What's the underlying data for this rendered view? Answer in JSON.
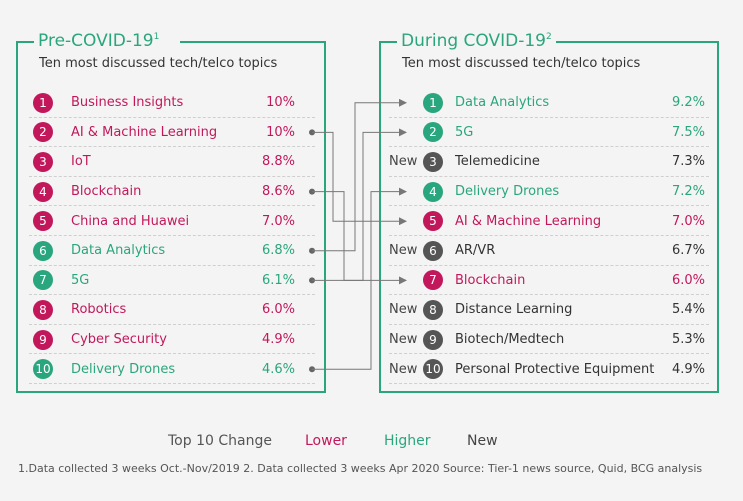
{
  "pre": {
    "title": "Pre-COVID-19",
    "title_sup": "1",
    "subtitle": "Ten most discussed tech/telco topics",
    "rows": [
      {
        "rank": "1",
        "label": "Business Insights",
        "value": "10%",
        "status": "lower"
      },
      {
        "rank": "2",
        "label": "AI & Machine Learning",
        "value": "10%",
        "status": "lower"
      },
      {
        "rank": "3",
        "label": "IoT",
        "value": "8.8%",
        "status": "lower"
      },
      {
        "rank": "4",
        "label": "Blockchain",
        "value": "8.6%",
        "status": "lower"
      },
      {
        "rank": "5",
        "label": "China and Huawei",
        "value": "7.0%",
        "status": "lower"
      },
      {
        "rank": "6",
        "label": "Data Analytics",
        "value": "6.8%",
        "status": "higher"
      },
      {
        "rank": "7",
        "label": "5G",
        "value": "6.1%",
        "status": "higher"
      },
      {
        "rank": "8",
        "label": "Robotics",
        "value": "6.0%",
        "status": "lower"
      },
      {
        "rank": "9",
        "label": "Cyber Security",
        "value": "4.9%",
        "status": "lower"
      },
      {
        "rank": "10",
        "label": "Delivery Drones",
        "value": "4.6%",
        "status": "higher"
      }
    ]
  },
  "during": {
    "title": "During COVID-19",
    "title_sup": "2",
    "subtitle": "Ten most discussed tech/telco topics",
    "rows": [
      {
        "rank": "1",
        "new": "",
        "label": "Data Analytics",
        "value": "9.2%",
        "status": "higher"
      },
      {
        "rank": "2",
        "new": "",
        "label": "5G",
        "value": "7.5%",
        "status": "higher"
      },
      {
        "rank": "3",
        "new": "New",
        "label": "Telemedicine",
        "value": "7.3%",
        "status": "new"
      },
      {
        "rank": "4",
        "new": "",
        "label": "Delivery Drones",
        "value": "7.2%",
        "status": "higher"
      },
      {
        "rank": "5",
        "new": "",
        "label": "AI & Machine Learning",
        "value": "7.0%",
        "status": "lower"
      },
      {
        "rank": "6",
        "new": "New",
        "label": "AR/VR",
        "value": "6.7%",
        "status": "new"
      },
      {
        "rank": "7",
        "new": "",
        "label": "Blockchain",
        "value": "6.0%",
        "status": "lower"
      },
      {
        "rank": "8",
        "new": "New",
        "label": "Distance Learning",
        "value": "5.4%",
        "status": "new"
      },
      {
        "rank": "9",
        "new": "New",
        "label": "Biotech/Medtech",
        "value": "5.3%",
        "status": "new"
      },
      {
        "rank": "10",
        "new": "New",
        "label": "Personal Protective Equipment",
        "value": "4.9%",
        "status": "new"
      }
    ]
  },
  "connections": [
    {
      "from": "6",
      "to": "1"
    },
    {
      "from": "7",
      "to": "2"
    },
    {
      "from": "10",
      "to": "4"
    },
    {
      "from": "2",
      "to": "5"
    },
    {
      "from": "4",
      "to": "7"
    }
  ],
  "legend": {
    "heading": "Top 10 Change",
    "lower": "Lower",
    "higher": "Higher",
    "new": "New"
  },
  "colors": {
    "lower": "#c2185b",
    "higher": "#2aa67e",
    "new": "#555555",
    "frame": "#2aa67e"
  },
  "footnote": "1.Data collected 3 weeks Oct.-Nov/2019 2. Data collected 3 weeks Apr 2020 Source: Tier-1 news source, Quid, BCG analysis"
}
